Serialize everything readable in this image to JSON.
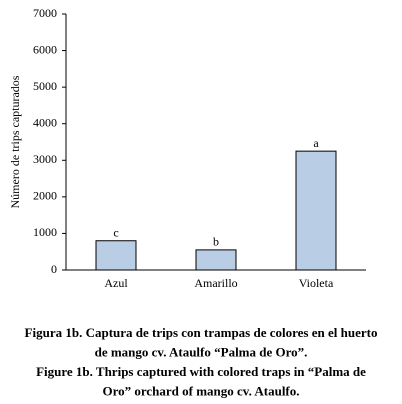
{
  "chart_data": {
    "type": "bar",
    "y_label": "Número de trips capturados",
    "categories": [
      "Azul",
      "Amarillo",
      "Violeta"
    ],
    "values": [
      800,
      550,
      3250
    ],
    "annotations": [
      "c",
      "b",
      "a"
    ],
    "color": "#b9cde5",
    "ylim": [
      0,
      7000
    ],
    "yticks": [
      0,
      1000,
      2000,
      3000,
      4000,
      5000,
      6000,
      7000
    ],
    "grid": false
  },
  "caption": [
    "Figura 1b. Captura de trips con trampas de colores en el huerto",
    "de mango cv. Ataulfo “Palma de Oro”.",
    "Figure 1b. Thrips captured with colored traps in “Palma de",
    "Oro” orchard of mango cv. Ataulfo."
  ]
}
